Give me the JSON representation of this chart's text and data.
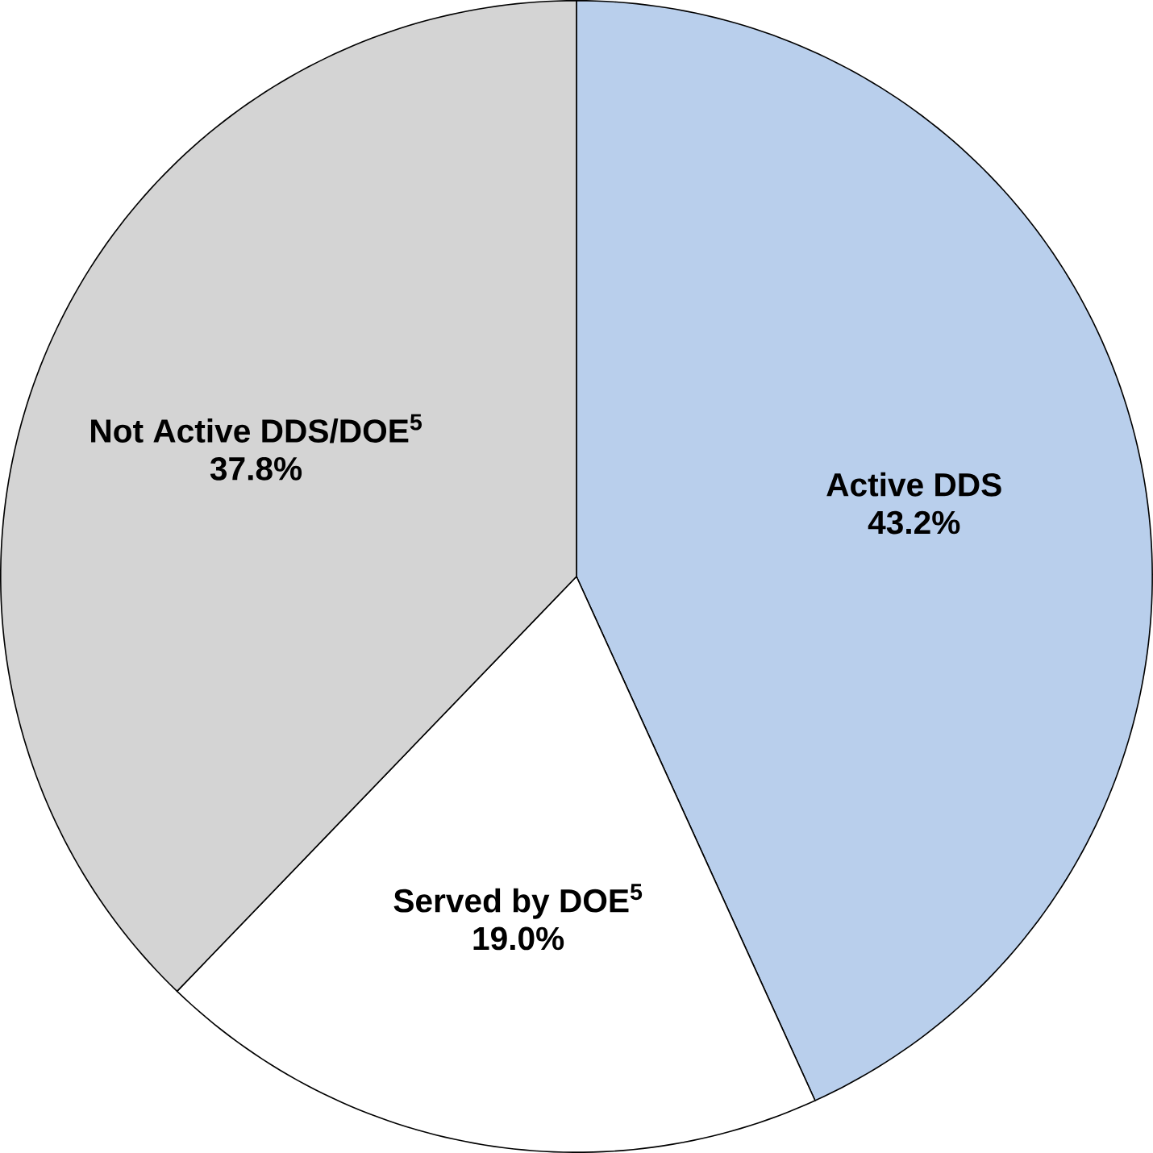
{
  "chart_data": {
    "type": "pie",
    "categories": [
      "Active DDS",
      "Served by DOE$^{5}$",
      "Not Active DDS/DOE$^{5}$"
    ],
    "values": [
      43.2,
      19.0,
      37.8
    ],
    "value_labels": [
      "43.2%",
      "19.0%",
      "37.8%"
    ],
    "colors": [
      "#b9cfec",
      "#ffffff",
      "#d4d4d4"
    ]
  }
}
